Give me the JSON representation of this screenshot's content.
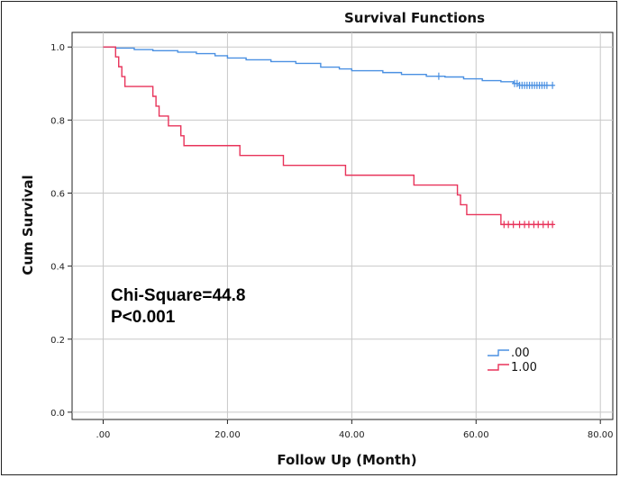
{
  "chart_data": {
    "type": "line",
    "title": "Survival Functions",
    "xlabel": "Follow Up (Month)",
    "ylabel": "Cum Survival",
    "xlim": [
      -5,
      82
    ],
    "ylim": [
      -0.02,
      1.04
    ],
    "x_ticks": [
      0,
      20,
      40,
      60,
      80
    ],
    "x_tick_labels": [
      ".00",
      "20.00",
      "40.00",
      "60.00",
      "80.00"
    ],
    "y_ticks": [
      0.0,
      0.2,
      0.4,
      0.6,
      0.8,
      1.0
    ],
    "y_tick_labels": [
      "0.0",
      "0.2",
      "0.4",
      "0.6",
      "0.8",
      "1.0"
    ],
    "grid": true,
    "legend_position": "bottom-right",
    "annotations": [
      "Chi-Square=44.8",
      "P<0.001"
    ],
    "series": [
      {
        "name": ".00",
        "color": "#4a90e2",
        "steps": [
          [
            0,
            1.0
          ],
          [
            2,
            0.997
          ],
          [
            5,
            0.993
          ],
          [
            8,
            0.99
          ],
          [
            12,
            0.986
          ],
          [
            15,
            0.982
          ],
          [
            18,
            0.976
          ],
          [
            20,
            0.97
          ],
          [
            23,
            0.965
          ],
          [
            27,
            0.96
          ],
          [
            31,
            0.955
          ],
          [
            35,
            0.945
          ],
          [
            38,
            0.94
          ],
          [
            40,
            0.935
          ],
          [
            45,
            0.93
          ],
          [
            48,
            0.925
          ],
          [
            52,
            0.92
          ],
          [
            55,
            0.918
          ],
          [
            58,
            0.913
          ],
          [
            61,
            0.908
          ],
          [
            64,
            0.905
          ],
          [
            66,
            0.9
          ],
          [
            67,
            0.895
          ],
          [
            72.5,
            0.895
          ]
        ],
        "censored": [
          54,
          66.2,
          66.6,
          67.0,
          67.4,
          67.8,
          68.2,
          68.6,
          69.0,
          69.4,
          69.8,
          70.2,
          70.6,
          71.0,
          71.4,
          72.3
        ]
      },
      {
        "name": "1.00",
        "color": "#e8335a",
        "steps": [
          [
            0,
            1.0
          ],
          [
            2,
            0.973
          ],
          [
            2.5,
            0.946
          ],
          [
            3,
            0.919
          ],
          [
            3.5,
            0.892
          ],
          [
            8,
            0.865
          ],
          [
            8.5,
            0.838
          ],
          [
            9,
            0.811
          ],
          [
            10.5,
            0.784
          ],
          [
            12.5,
            0.757
          ],
          [
            13,
            0.73
          ],
          [
            22,
            0.703
          ],
          [
            29,
            0.676
          ],
          [
            39,
            0.649
          ],
          [
            50,
            0.622
          ],
          [
            57,
            0.595
          ],
          [
            57.5,
            0.568
          ],
          [
            58.5,
            0.541
          ],
          [
            64,
            0.514
          ],
          [
            72.5,
            0.514
          ]
        ],
        "censored": [
          64.5,
          65.2,
          66.0,
          67.0,
          67.8,
          68.5,
          69.3,
          70.0,
          70.8,
          71.6,
          72.3
        ]
      }
    ]
  }
}
